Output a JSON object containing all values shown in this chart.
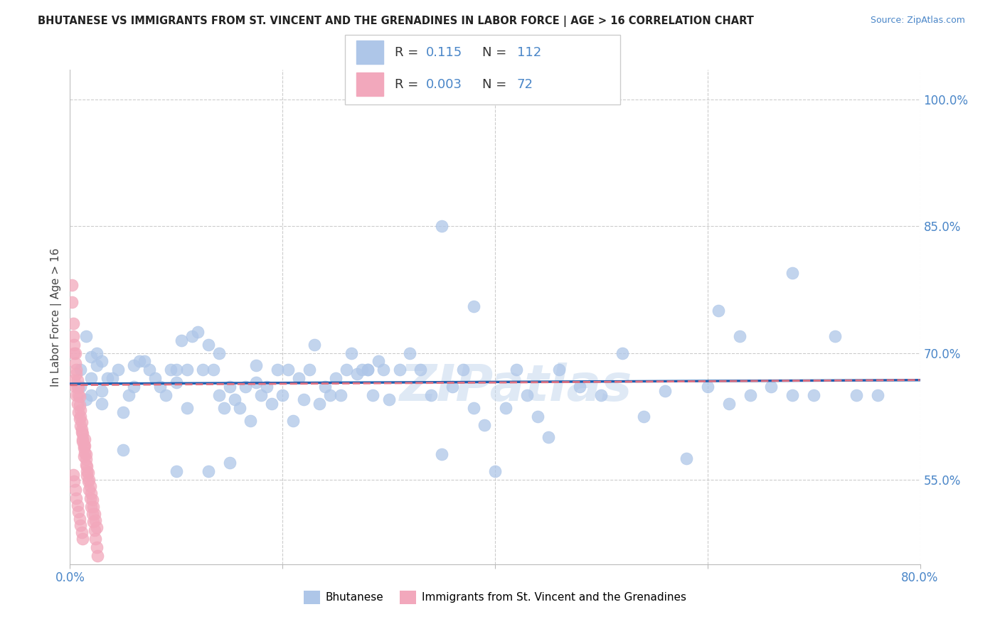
{
  "title": "BHUTANESE VS IMMIGRANTS FROM ST. VINCENT AND THE GRENADINES IN LABOR FORCE | AGE > 16 CORRELATION CHART",
  "source": "Source: ZipAtlas.com",
  "ylabel": "In Labor Force | Age > 16",
  "x_min": 0.0,
  "x_max": 0.8,
  "y_min": 0.45,
  "y_max": 1.035,
  "x_ticks": [
    0.0,
    0.2,
    0.4,
    0.6,
    0.8
  ],
  "x_tick_labels": [
    "0.0%",
    "",
    "",
    "",
    "80.0%"
  ],
  "y_tick_labels": [
    "55.0%",
    "70.0%",
    "85.0%",
    "100.0%"
  ],
  "y_ticks": [
    0.55,
    0.7,
    0.85,
    1.0
  ],
  "blue_color": "#aec6e8",
  "pink_color": "#f2a8bc",
  "blue_line_color": "#2060b0",
  "pink_line_color": "#e07080",
  "watermark": "ZIPatlas",
  "blue_scatter_x": [
    0.01,
    0.01,
    0.015,
    0.015,
    0.02,
    0.02,
    0.02,
    0.025,
    0.025,
    0.03,
    0.03,
    0.03,
    0.035,
    0.04,
    0.045,
    0.05,
    0.05,
    0.055,
    0.06,
    0.06,
    0.065,
    0.07,
    0.075,
    0.08,
    0.085,
    0.09,
    0.095,
    0.1,
    0.1,
    0.105,
    0.11,
    0.11,
    0.115,
    0.12,
    0.125,
    0.13,
    0.135,
    0.14,
    0.14,
    0.145,
    0.15,
    0.155,
    0.16,
    0.165,
    0.17,
    0.175,
    0.175,
    0.18,
    0.185,
    0.19,
    0.195,
    0.2,
    0.205,
    0.21,
    0.215,
    0.22,
    0.225,
    0.23,
    0.235,
    0.24,
    0.245,
    0.25,
    0.255,
    0.26,
    0.265,
    0.27,
    0.275,
    0.28,
    0.285,
    0.29,
    0.295,
    0.3,
    0.31,
    0.32,
    0.33,
    0.34,
    0.35,
    0.36,
    0.37,
    0.38,
    0.39,
    0.4,
    0.41,
    0.42,
    0.43,
    0.44,
    0.45,
    0.46,
    0.48,
    0.5,
    0.52,
    0.54,
    0.56,
    0.58,
    0.6,
    0.62,
    0.64,
    0.66,
    0.68,
    0.7,
    0.35,
    0.38,
    0.68,
    0.72,
    0.74,
    0.76,
    0.61,
    0.63,
    0.1,
    0.13,
    0.15,
    0.28
  ],
  "blue_scatter_y": [
    0.68,
    0.66,
    0.72,
    0.645,
    0.67,
    0.695,
    0.65,
    0.7,
    0.685,
    0.64,
    0.69,
    0.655,
    0.67,
    0.67,
    0.68,
    0.585,
    0.63,
    0.65,
    0.66,
    0.685,
    0.69,
    0.69,
    0.68,
    0.67,
    0.66,
    0.65,
    0.68,
    0.665,
    0.68,
    0.715,
    0.68,
    0.635,
    0.72,
    0.725,
    0.68,
    0.71,
    0.68,
    0.65,
    0.7,
    0.635,
    0.66,
    0.645,
    0.635,
    0.66,
    0.62,
    0.665,
    0.685,
    0.65,
    0.66,
    0.64,
    0.68,
    0.65,
    0.68,
    0.62,
    0.67,
    0.645,
    0.68,
    0.71,
    0.64,
    0.66,
    0.65,
    0.67,
    0.65,
    0.68,
    0.7,
    0.675,
    0.68,
    0.68,
    0.65,
    0.69,
    0.68,
    0.645,
    0.68,
    0.7,
    0.68,
    0.65,
    0.58,
    0.66,
    0.68,
    0.635,
    0.615,
    0.56,
    0.635,
    0.68,
    0.65,
    0.625,
    0.6,
    0.68,
    0.66,
    0.65,
    0.7,
    0.625,
    0.655,
    0.575,
    0.66,
    0.64,
    0.65,
    0.66,
    0.65,
    0.65,
    0.85,
    0.755,
    0.795,
    0.72,
    0.65,
    0.65,
    0.75,
    0.72,
    0.56,
    0.56,
    0.57,
    0.68
  ],
  "pink_scatter_x": [
    0.002,
    0.002,
    0.003,
    0.003,
    0.004,
    0.004,
    0.005,
    0.005,
    0.006,
    0.006,
    0.007,
    0.007,
    0.008,
    0.008,
    0.009,
    0.009,
    0.01,
    0.01,
    0.011,
    0.011,
    0.012,
    0.012,
    0.013,
    0.013,
    0.014,
    0.014,
    0.015,
    0.015,
    0.016,
    0.016,
    0.017,
    0.018,
    0.019,
    0.02,
    0.021,
    0.022,
    0.023,
    0.024,
    0.025,
    0.026,
    0.004,
    0.005,
    0.006,
    0.007,
    0.008,
    0.009,
    0.01,
    0.011,
    0.012,
    0.013,
    0.014,
    0.015,
    0.016,
    0.017,
    0.018,
    0.019,
    0.02,
    0.021,
    0.022,
    0.023,
    0.024,
    0.025,
    0.003,
    0.004,
    0.005,
    0.006,
    0.007,
    0.008,
    0.009,
    0.01,
    0.011,
    0.012
  ],
  "pink_scatter_y": [
    0.78,
    0.76,
    0.735,
    0.72,
    0.71,
    0.7,
    0.7,
    0.688,
    0.68,
    0.675,
    0.668,
    0.66,
    0.658,
    0.65,
    0.648,
    0.638,
    0.632,
    0.625,
    0.618,
    0.61,
    0.605,
    0.595,
    0.588,
    0.578,
    0.598,
    0.59,
    0.58,
    0.568,
    0.56,
    0.555,
    0.548,
    0.538,
    0.528,
    0.518,
    0.51,
    0.5,
    0.49,
    0.48,
    0.47,
    0.46,
    0.668,
    0.66,
    0.65,
    0.64,
    0.63,
    0.622,
    0.614,
    0.606,
    0.598,
    0.59,
    0.582,
    0.574,
    0.566,
    0.558,
    0.55,
    0.542,
    0.534,
    0.526,
    0.518,
    0.51,
    0.502,
    0.494,
    0.556,
    0.548,
    0.538,
    0.528,
    0.52,
    0.512,
    0.504,
    0.496,
    0.488,
    0.48
  ]
}
